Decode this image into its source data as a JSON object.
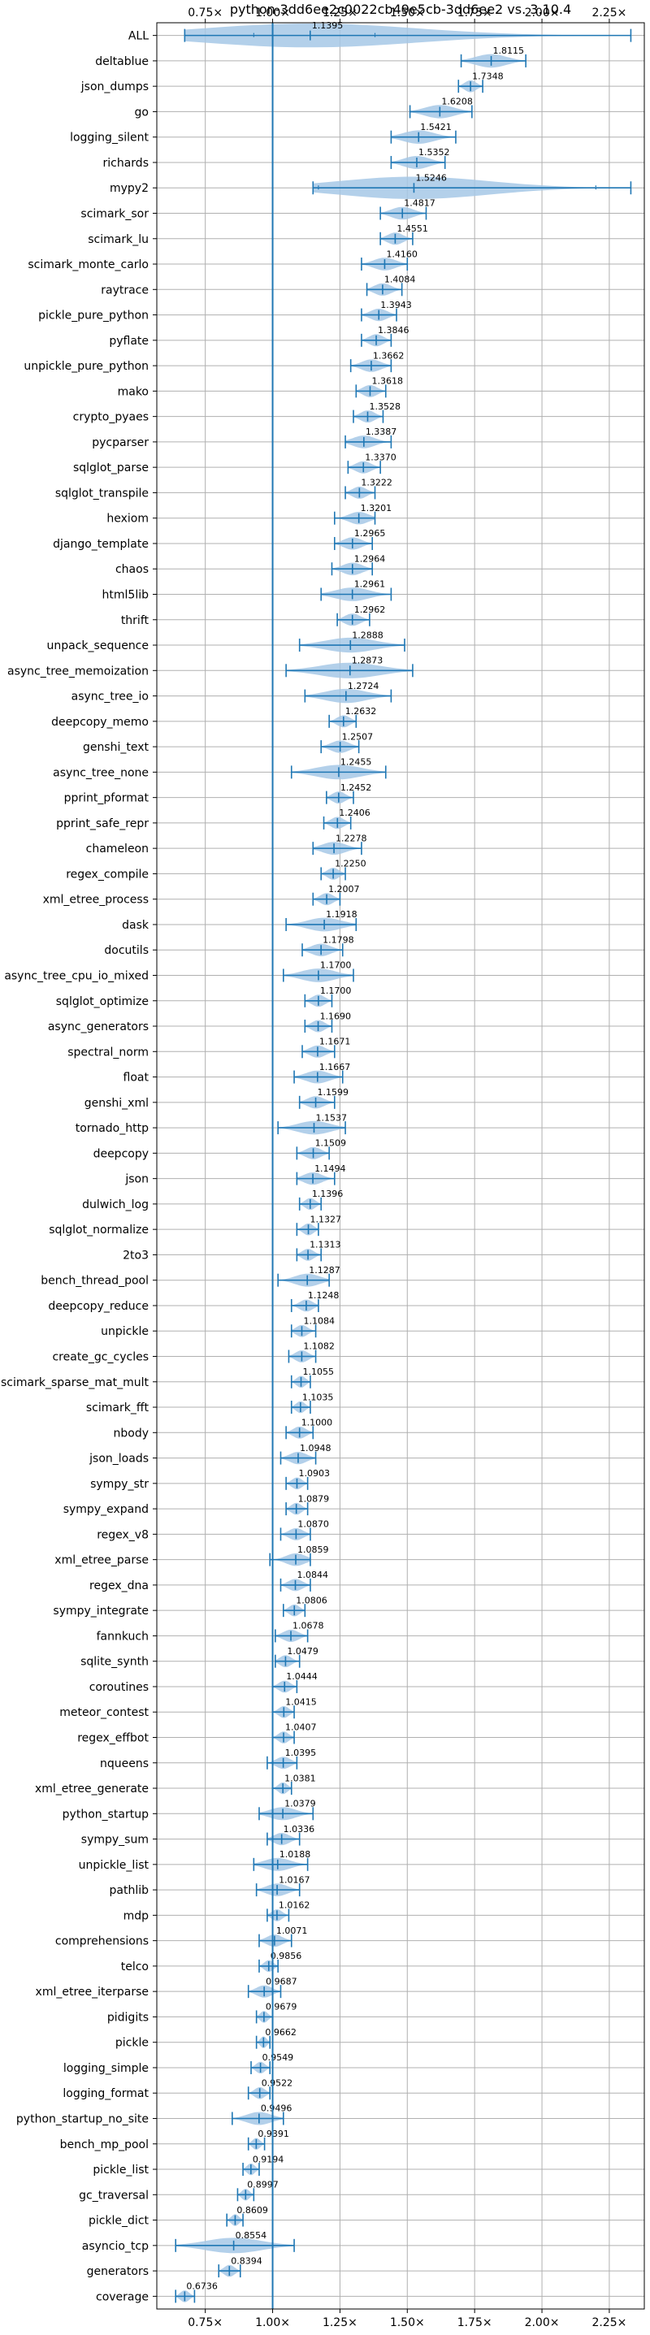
{
  "chart_data": {
    "type": "violin",
    "title": "python-3dd6ee2c0022cb49e5cb-3dd6ee2 vs. 3.10.4",
    "xlabel": "",
    "ylabel": "",
    "xlim": [
      0.57,
      2.38
    ],
    "x_ticks": [
      0.75,
      1.0,
      1.25,
      1.5,
      1.75,
      2.0,
      2.25
    ],
    "x_tick_labels": [
      "0.75×",
      "1.00×",
      "1.25×",
      "1.50×",
      "1.75×",
      "2.00×",
      "2.25×"
    ],
    "reference_line": 1.0,
    "grid": true,
    "colors": {
      "violin": "#a6c8e6",
      "stroke": "#1f77b4",
      "grid": "#b0b0b0",
      "text": "#000000"
    },
    "benchmarks": [
      {
        "name": "ALL",
        "label": "1.1395",
        "median": 1.1395,
        "min": 0.6736,
        "max": 2.33,
        "q1": 0.93,
        "q3": 1.38
      },
      {
        "name": "deltablue",
        "label": "1.8115",
        "median": 1.8115,
        "min": 1.7,
        "max": 1.94
      },
      {
        "name": "json_dumps",
        "label": "1.7348",
        "median": 1.7348,
        "min": 1.69,
        "max": 1.78
      },
      {
        "name": "go",
        "label": "1.6208",
        "median": 1.6208,
        "min": 1.51,
        "max": 1.74
      },
      {
        "name": "logging_silent",
        "label": "1.5421",
        "median": 1.5421,
        "min": 1.44,
        "max": 1.68
      },
      {
        "name": "richards",
        "label": "1.5352",
        "median": 1.5352,
        "min": 1.44,
        "max": 1.64
      },
      {
        "name": "mypy2",
        "label": "1.5246",
        "median": 1.5246,
        "min": 1.15,
        "max": 2.33,
        "q1": 1.17,
        "q3": 2.2
      },
      {
        "name": "scimark_sor",
        "label": "1.4817",
        "median": 1.4817,
        "min": 1.4,
        "max": 1.57
      },
      {
        "name": "scimark_lu",
        "label": "1.4551",
        "median": 1.4551,
        "min": 1.4,
        "max": 1.52
      },
      {
        "name": "scimark_monte_carlo",
        "label": "1.4160",
        "median": 1.416,
        "min": 1.33,
        "max": 1.5
      },
      {
        "name": "raytrace",
        "label": "1.4084",
        "median": 1.4084,
        "min": 1.35,
        "max": 1.48
      },
      {
        "name": "pickle_pure_python",
        "label": "1.3943",
        "median": 1.3943,
        "min": 1.33,
        "max": 1.46
      },
      {
        "name": "pyflate",
        "label": "1.3846",
        "median": 1.3846,
        "min": 1.33,
        "max": 1.44
      },
      {
        "name": "unpickle_pure_python",
        "label": "1.3662",
        "median": 1.3662,
        "min": 1.29,
        "max": 1.44
      },
      {
        "name": "mako",
        "label": "1.3618",
        "median": 1.3618,
        "min": 1.31,
        "max": 1.42
      },
      {
        "name": "crypto_pyaes",
        "label": "1.3528",
        "median": 1.3528,
        "min": 1.3,
        "max": 1.41
      },
      {
        "name": "pycparser",
        "label": "1.3387",
        "median": 1.3387,
        "min": 1.27,
        "max": 1.44
      },
      {
        "name": "sqlglot_parse",
        "label": "1.3370",
        "median": 1.337,
        "min": 1.28,
        "max": 1.4
      },
      {
        "name": "sqlglot_transpile",
        "label": "1.3222",
        "median": 1.3222,
        "min": 1.27,
        "max": 1.38
      },
      {
        "name": "hexiom",
        "label": "1.3201",
        "median": 1.3201,
        "min": 1.23,
        "max": 1.38
      },
      {
        "name": "django_template",
        "label": "1.2965",
        "median": 1.2965,
        "min": 1.23,
        "max": 1.37
      },
      {
        "name": "chaos",
        "label": "1.2964",
        "median": 1.2964,
        "min": 1.22,
        "max": 1.37
      },
      {
        "name": "html5lib",
        "label": "1.2961",
        "median": 1.2961,
        "min": 1.18,
        "max": 1.44
      },
      {
        "name": "thrift",
        "label": "1.2962",
        "median": 1.2962,
        "min": 1.24,
        "max": 1.36
      },
      {
        "name": "unpack_sequence",
        "label": "1.2888",
        "median": 1.2888,
        "min": 1.1,
        "max": 1.49
      },
      {
        "name": "async_tree_memoization",
        "label": "1.2873",
        "median": 1.2873,
        "min": 1.05,
        "max": 1.52
      },
      {
        "name": "async_tree_io",
        "label": "1.2724",
        "median": 1.2724,
        "min": 1.12,
        "max": 1.44
      },
      {
        "name": "deepcopy_memo",
        "label": "1.2632",
        "median": 1.2632,
        "min": 1.21,
        "max": 1.31
      },
      {
        "name": "genshi_text",
        "label": "1.2507",
        "median": 1.2507,
        "min": 1.18,
        "max": 1.32
      },
      {
        "name": "async_tree_none",
        "label": "1.2455",
        "median": 1.2455,
        "min": 1.07,
        "max": 1.42
      },
      {
        "name": "pprint_pformat",
        "label": "1.2452",
        "median": 1.2452,
        "min": 1.2,
        "max": 1.3
      },
      {
        "name": "pprint_safe_repr",
        "label": "1.2406",
        "median": 1.2406,
        "min": 1.19,
        "max": 1.29
      },
      {
        "name": "chameleon",
        "label": "1.2278",
        "median": 1.2278,
        "min": 1.15,
        "max": 1.33
      },
      {
        "name": "regex_compile",
        "label": "1.2250",
        "median": 1.225,
        "min": 1.18,
        "max": 1.27
      },
      {
        "name": "xml_etree_process",
        "label": "1.2007",
        "median": 1.2007,
        "min": 1.15,
        "max": 1.25
      },
      {
        "name": "dask",
        "label": "1.1918",
        "median": 1.1918,
        "min": 1.05,
        "max": 1.31
      },
      {
        "name": "docutils",
        "label": "1.1798",
        "median": 1.1798,
        "min": 1.11,
        "max": 1.26
      },
      {
        "name": "async_tree_cpu_io_mixed",
        "label": "1.1700",
        "median": 1.17,
        "min": 1.04,
        "max": 1.3
      },
      {
        "name": "sqlglot_optimize",
        "label": "1.1700",
        "median": 1.17,
        "min": 1.12,
        "max": 1.22
      },
      {
        "name": "async_generators",
        "label": "1.1690",
        "median": 1.169,
        "min": 1.12,
        "max": 1.22
      },
      {
        "name": "spectral_norm",
        "label": "1.1671",
        "median": 1.1671,
        "min": 1.11,
        "max": 1.23
      },
      {
        "name": "float",
        "label": "1.1667",
        "median": 1.1667,
        "min": 1.08,
        "max": 1.26
      },
      {
        "name": "genshi_xml",
        "label": "1.1599",
        "median": 1.1599,
        "min": 1.1,
        "max": 1.23
      },
      {
        "name": "tornado_http",
        "label": "1.1537",
        "median": 1.1537,
        "min": 1.02,
        "max": 1.27
      },
      {
        "name": "deepcopy",
        "label": "1.1509",
        "median": 1.1509,
        "min": 1.09,
        "max": 1.21
      },
      {
        "name": "json",
        "label": "1.1494",
        "median": 1.1494,
        "min": 1.09,
        "max": 1.23
      },
      {
        "name": "dulwich_log",
        "label": "1.1396",
        "median": 1.1396,
        "min": 1.1,
        "max": 1.18
      },
      {
        "name": "sqlglot_normalize",
        "label": "1.1327",
        "median": 1.1327,
        "min": 1.09,
        "max": 1.17
      },
      {
        "name": "2to3",
        "label": "1.1313",
        "median": 1.1313,
        "min": 1.09,
        "max": 1.18
      },
      {
        "name": "bench_thread_pool",
        "label": "1.1287",
        "median": 1.1287,
        "min": 1.02,
        "max": 1.21
      },
      {
        "name": "deepcopy_reduce",
        "label": "1.1248",
        "median": 1.1248,
        "min": 1.07,
        "max": 1.17
      },
      {
        "name": "unpickle",
        "label": "1.1084",
        "median": 1.1084,
        "min": 1.07,
        "max": 1.16
      },
      {
        "name": "create_gc_cycles",
        "label": "1.1082",
        "median": 1.1082,
        "min": 1.06,
        "max": 1.16
      },
      {
        "name": "scimark_sparse_mat_mult",
        "label": "1.1055",
        "median": 1.1055,
        "min": 1.07,
        "max": 1.14
      },
      {
        "name": "scimark_fft",
        "label": "1.1035",
        "median": 1.1035,
        "min": 1.07,
        "max": 1.14
      },
      {
        "name": "nbody",
        "label": "1.1000",
        "median": 1.1,
        "min": 1.05,
        "max": 1.15
      },
      {
        "name": "json_loads",
        "label": "1.0948",
        "median": 1.0948,
        "min": 1.03,
        "max": 1.16
      },
      {
        "name": "sympy_str",
        "label": "1.0903",
        "median": 1.0903,
        "min": 1.05,
        "max": 1.13
      },
      {
        "name": "sympy_expand",
        "label": "1.0879",
        "median": 1.0879,
        "min": 1.05,
        "max": 1.13
      },
      {
        "name": "regex_v8",
        "label": "1.0870",
        "median": 1.087,
        "min": 1.03,
        "max": 1.14
      },
      {
        "name": "xml_etree_parse",
        "label": "1.0859",
        "median": 1.0859,
        "min": 0.99,
        "max": 1.14
      },
      {
        "name": "regex_dna",
        "label": "1.0844",
        "median": 1.0844,
        "min": 1.03,
        "max": 1.14
      },
      {
        "name": "sympy_integrate",
        "label": "1.0806",
        "median": 1.0806,
        "min": 1.04,
        "max": 1.12
      },
      {
        "name": "fannkuch",
        "label": "1.0678",
        "median": 1.0678,
        "min": 1.01,
        "max": 1.13
      },
      {
        "name": "sqlite_synth",
        "label": "1.0479",
        "median": 1.0479,
        "min": 1.01,
        "max": 1.1
      },
      {
        "name": "coroutines",
        "label": "1.0444",
        "median": 1.0444,
        "min": 1.0,
        "max": 1.09
      },
      {
        "name": "meteor_contest",
        "label": "1.0415",
        "median": 1.0415,
        "min": 1.0,
        "max": 1.08
      },
      {
        "name": "regex_effbot",
        "label": "1.0407",
        "median": 1.0407,
        "min": 1.0,
        "max": 1.08
      },
      {
        "name": "nqueens",
        "label": "1.0395",
        "median": 1.0395,
        "min": 0.98,
        "max": 1.09
      },
      {
        "name": "xml_etree_generate",
        "label": "1.0381",
        "median": 1.0381,
        "min": 1.0,
        "max": 1.07
      },
      {
        "name": "python_startup",
        "label": "1.0379",
        "median": 1.0379,
        "min": 0.95,
        "max": 1.15
      },
      {
        "name": "sympy_sum",
        "label": "1.0336",
        "median": 1.0336,
        "min": 0.98,
        "max": 1.1
      },
      {
        "name": "unpickle_list",
        "label": "1.0188",
        "median": 1.0188,
        "min": 0.93,
        "max": 1.13
      },
      {
        "name": "pathlib",
        "label": "1.0167",
        "median": 1.0167,
        "min": 0.94,
        "max": 1.1
      },
      {
        "name": "mdp",
        "label": "1.0162",
        "median": 1.0162,
        "min": 0.98,
        "max": 1.06
      },
      {
        "name": "comprehensions",
        "label": "1.0071",
        "median": 1.0071,
        "min": 0.95,
        "max": 1.07
      },
      {
        "name": "telco",
        "label": "0.9856",
        "median": 0.9856,
        "min": 0.95,
        "max": 1.02
      },
      {
        "name": "xml_etree_iterparse",
        "label": "0.9687",
        "median": 0.9687,
        "min": 0.91,
        "max": 1.03
      },
      {
        "name": "pidigits",
        "label": "0.9679",
        "median": 0.9679,
        "min": 0.94,
        "max": 1.0
      },
      {
        "name": "pickle",
        "label": "0.9662",
        "median": 0.9662,
        "min": 0.94,
        "max": 0.99
      },
      {
        "name": "logging_simple",
        "label": "0.9549",
        "median": 0.9549,
        "min": 0.92,
        "max": 0.99
      },
      {
        "name": "logging_format",
        "label": "0.9522",
        "median": 0.9522,
        "min": 0.91,
        "max": 0.99
      },
      {
        "name": "python_startup_no_site",
        "label": "0.9496",
        "median": 0.9496,
        "min": 0.85,
        "max": 1.04
      },
      {
        "name": "bench_mp_pool",
        "label": "0.9391",
        "median": 0.9391,
        "min": 0.91,
        "max": 0.97
      },
      {
        "name": "pickle_list",
        "label": "0.9194",
        "median": 0.9194,
        "min": 0.89,
        "max": 0.95
      },
      {
        "name": "gc_traversal",
        "label": "0.8997",
        "median": 0.8997,
        "min": 0.87,
        "max": 0.93
      },
      {
        "name": "pickle_dict",
        "label": "0.8609",
        "median": 0.8609,
        "min": 0.83,
        "max": 0.89
      },
      {
        "name": "asyncio_tcp",
        "label": "0.8554",
        "median": 0.8554,
        "min": 0.64,
        "max": 1.08
      },
      {
        "name": "generators",
        "label": "0.8394",
        "median": 0.8394,
        "min": 0.8,
        "max": 0.88
      },
      {
        "name": "coverage",
        "label": "0.6736",
        "median": 0.6736,
        "min": 0.64,
        "max": 0.71
      }
    ]
  }
}
